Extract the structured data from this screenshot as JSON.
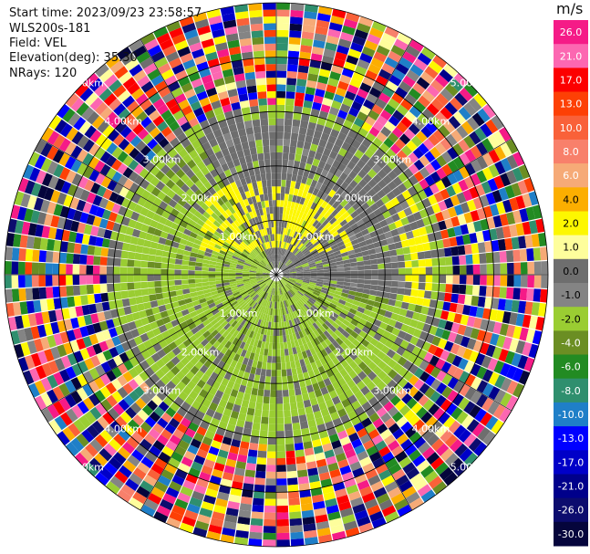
{
  "header": {
    "start_time": "Start time: 2023/09/23 23:58:57",
    "instrument": "WLS200s-181",
    "field": "Field: VEL",
    "elevation": "Elevation(deg): 35.30",
    "nrays": "NRays: 120"
  },
  "chart_data": {
    "type": "heatmap",
    "projection": "polar-ppi",
    "field": "VEL",
    "unit": "m/s",
    "n_rays": 120,
    "range_rings_km": [
      1.0,
      2.0,
      3.0,
      4.0,
      5.0
    ],
    "ring_labels": [
      "1.00km",
      "2.00km",
      "3.00km",
      "4.00km",
      "5.00km"
    ],
    "max_range_km": 5.0,
    "colorbar": {
      "title": "m/s",
      "range": [
        -30.0,
        30.0
      ],
      "ticks": [
        "26.0",
        "21.0",
        "17.0",
        "13.0",
        "10.0",
        "8.0",
        "6.0",
        "4.0",
        "2.0",
        "1.0",
        "0.0",
        "-1.0",
        "-2.0",
        "-4.0",
        "-6.0",
        "-8.0",
        "-10.0",
        "-13.0",
        "-17.0",
        "-21.0",
        "-26.0",
        "-30.0"
      ],
      "colors": [
        "#f51b87",
        "#fc67b1",
        "#fc0000",
        "#fd4005",
        "#f96139",
        "#f8806b",
        "#f6aa77",
        "#fcae00",
        "#fdf700",
        "#fefe9c",
        "#6e6e6e",
        "#848484",
        "#9acd32",
        "#6b8e23",
        "#228b22",
        "#2f8f6e",
        "#1f7fc8",
        "#0000ff",
        "#0000c8",
        "#00008b",
        "#0c0c6e",
        "#05053c"
      ]
    }
  }
}
